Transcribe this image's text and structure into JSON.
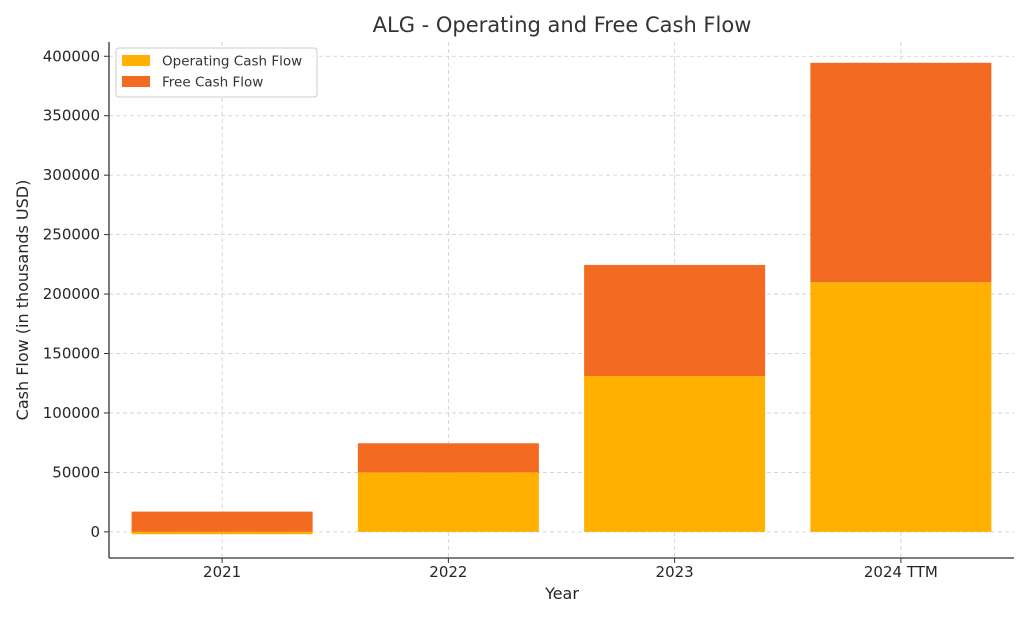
{
  "chart_data": {
    "type": "bar",
    "stacked": true,
    "title": "ALG - Operating and Free Cash Flow",
    "xlabel": "Year",
    "ylabel": "Cash Flow (in thousands USD)",
    "categories": [
      "2021",
      "2022",
      "2023",
      "2024 TTM"
    ],
    "series": [
      {
        "name": "Operating Cash Flow",
        "color": "#FFB000",
        "values": [
          -2000,
          50000,
          131000,
          210000
        ]
      },
      {
        "name": "Free Cash Flow",
        "color": "#F26B21",
        "values": [
          17000,
          24500,
          93500,
          184500
        ]
      }
    ],
    "ylim": [
      -22000,
      412000
    ],
    "yticks": [
      0,
      50000,
      100000,
      150000,
      200000,
      250000,
      300000,
      350000,
      400000
    ],
    "grid": true,
    "legend_position": "top-left"
  }
}
